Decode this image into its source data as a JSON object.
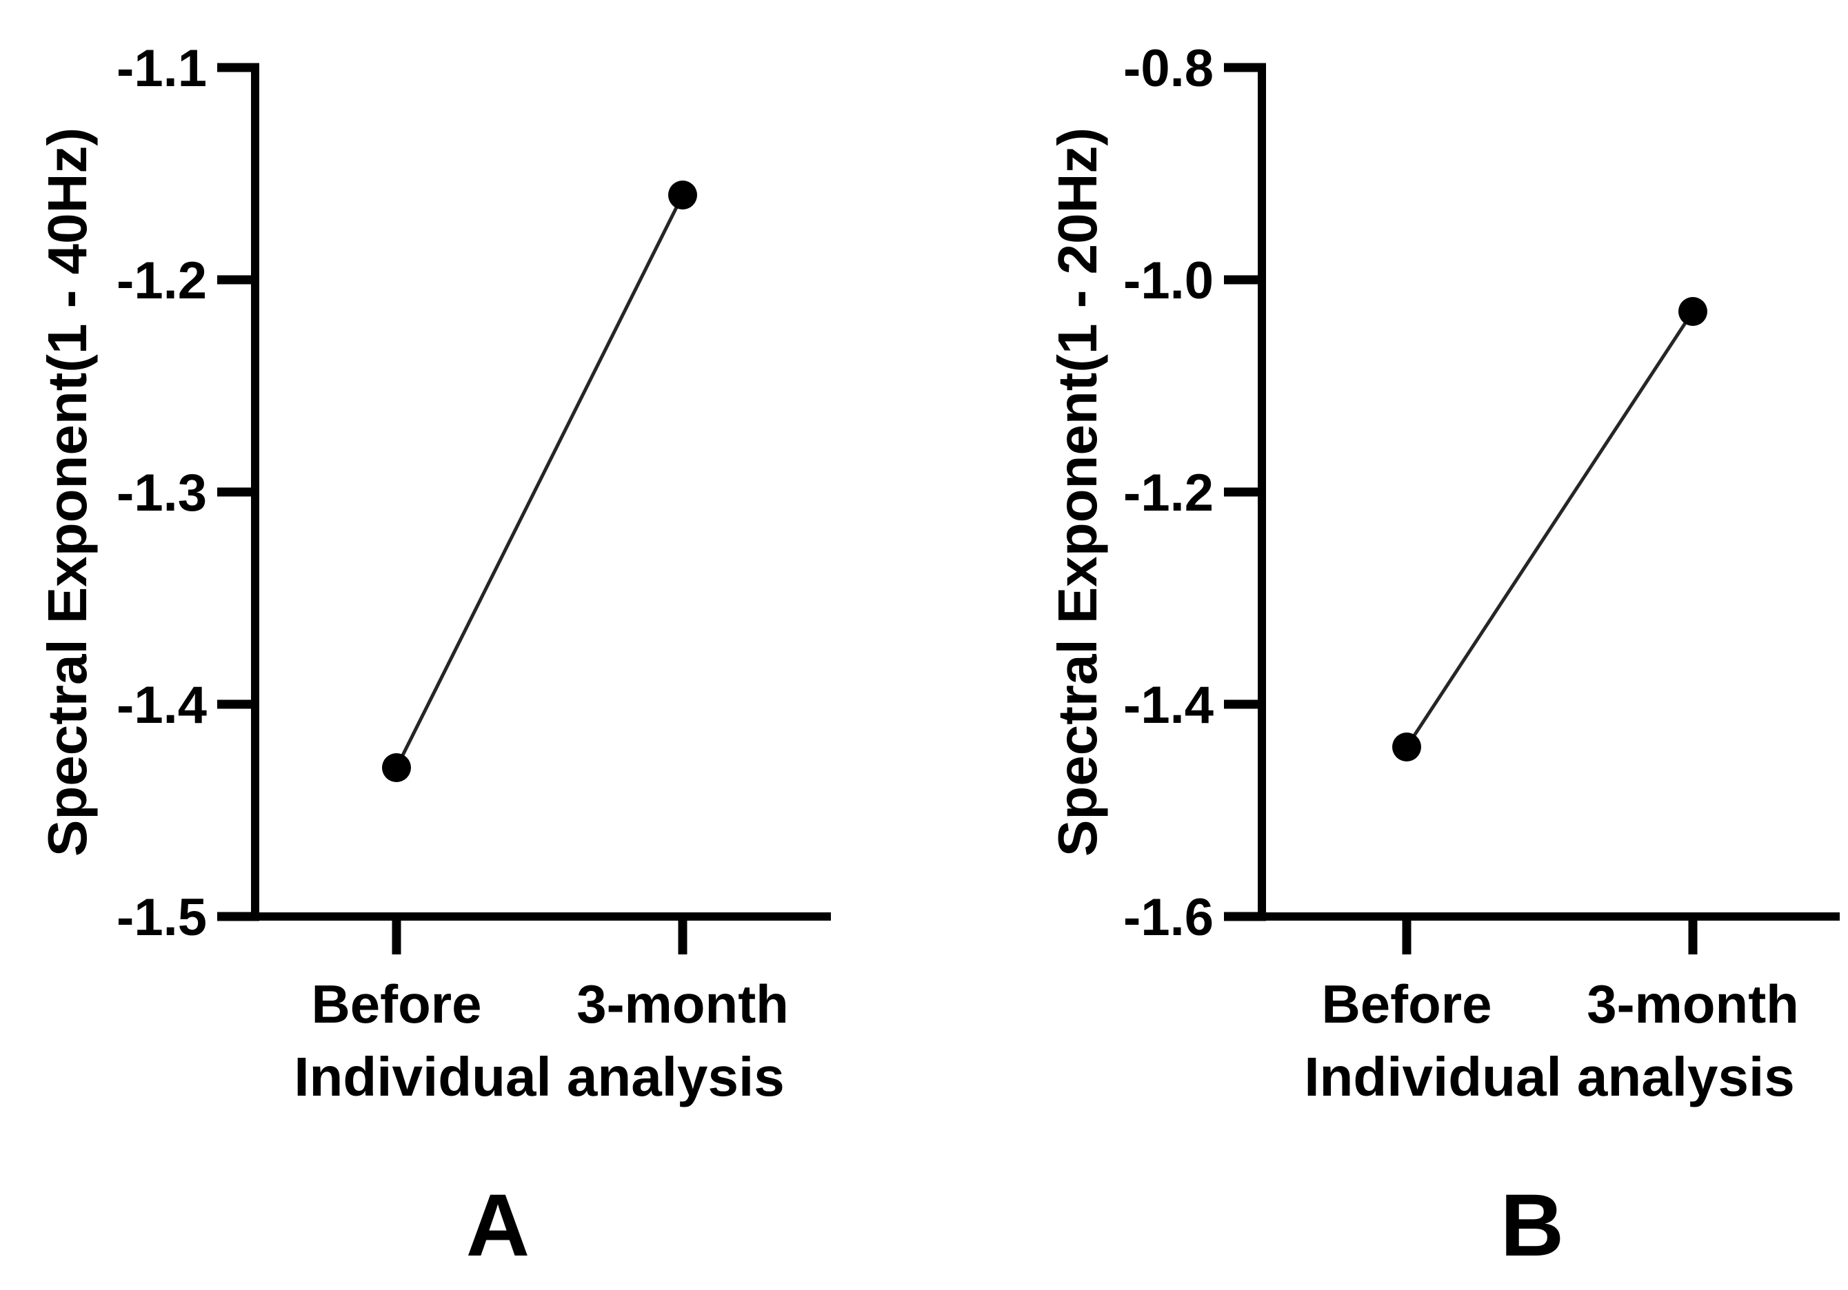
{
  "chart_data": [
    {
      "type": "line",
      "panel_label": "A",
      "ylabel": "Spectral Exponent(1 - 40Hz)",
      "xlabel": "Individual analysis",
      "categories": [
        "Before",
        "3-month"
      ],
      "values": [
        -1.43,
        -1.16
      ],
      "ylim": [
        -1.5,
        -1.1
      ],
      "yticks": [
        -1.1,
        -1.2,
        -1.3,
        -1.4,
        -1.5
      ],
      "ytick_labels": [
        "-1.1",
        "-1.2",
        "-1.3",
        "-1.4",
        "-1.5"
      ],
      "grid": false,
      "legend": "none",
      "marker": "filled-circle"
    },
    {
      "type": "line",
      "panel_label": "B",
      "ylabel": "Spectral Exponent(1 - 20Hz)",
      "xlabel": "Individual analysis",
      "categories": [
        "Before",
        "3-month"
      ],
      "values": [
        -1.44,
        -1.03
      ],
      "ylim": [
        -1.6,
        -0.8
      ],
      "yticks": [
        -0.8,
        -1.0,
        -1.2,
        -1.4,
        -1.6
      ],
      "ytick_labels": [
        "-0.8",
        "-1.0",
        "-1.2",
        "-1.4",
        "-1.6"
      ],
      "grid": false,
      "legend": "none",
      "marker": "filled-circle"
    }
  ],
  "colors": {
    "ink": "#000000",
    "series_line": "#262626",
    "marker": "#000000",
    "background": "#ffffff"
  }
}
